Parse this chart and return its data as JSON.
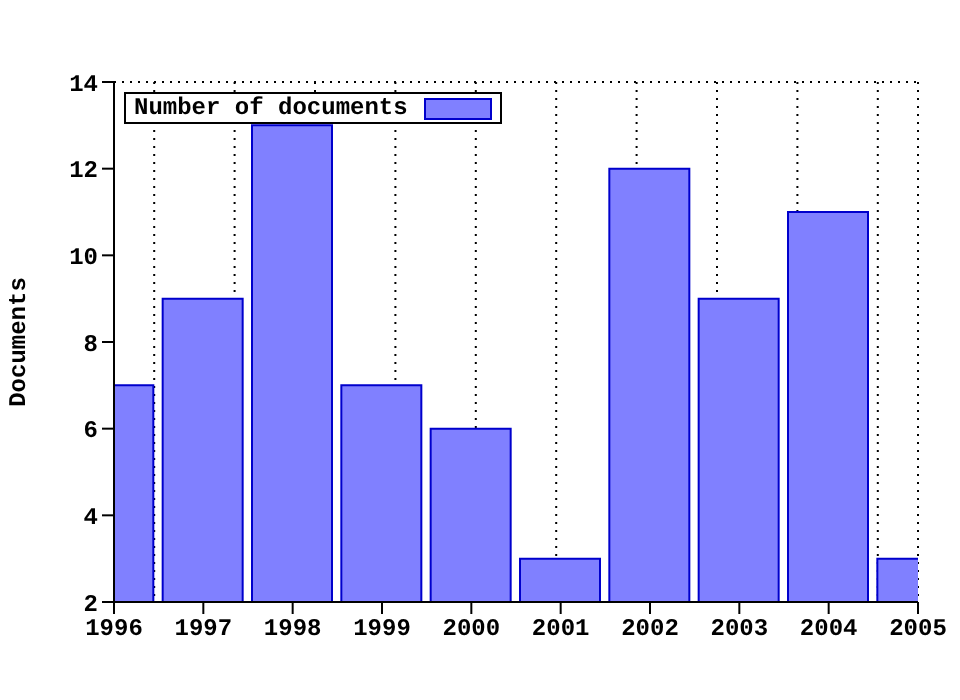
{
  "chart_data": {
    "type": "bar",
    "ylabel": "Documents",
    "x": [
      1996,
      1997,
      1998,
      1999,
      2000,
      2001,
      2002,
      2003,
      2004,
      2005
    ],
    "series": [
      {
        "name": "Number of documents",
        "color": "#8080ff",
        "values": [
          7,
          9,
          13,
          7,
          6,
          3,
          12,
          9,
          11,
          3
        ]
      }
    ],
    "xlim": [
      1996,
      2005
    ],
    "xticks": [
      1996,
      1997,
      1998,
      1999,
      2000,
      2001,
      2002,
      2003,
      2004,
      2005
    ],
    "ylim": [
      2,
      14
    ],
    "yticks": [
      2,
      4,
      6,
      8,
      10,
      12,
      14
    ],
    "grid": true,
    "legend": "top left"
  }
}
